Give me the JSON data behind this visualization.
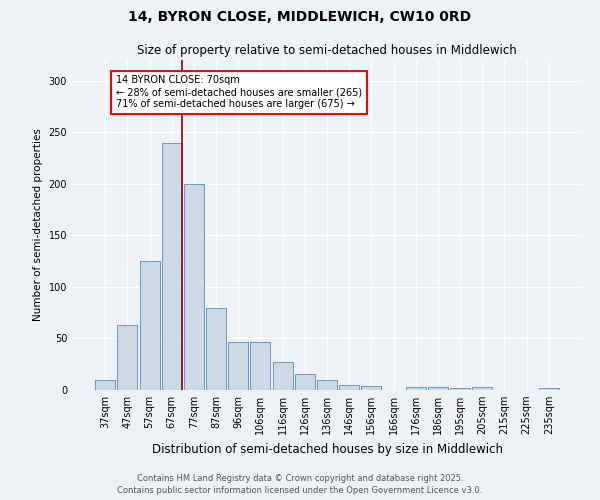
{
  "title1": "14, BYRON CLOSE, MIDDLEWICH, CW10 0RD",
  "title2": "Size of property relative to semi-detached houses in Middlewich",
  "xlabel": "Distribution of semi-detached houses by size in Middlewich",
  "ylabel": "Number of semi-detached properties",
  "categories": [
    "37sqm",
    "47sqm",
    "57sqm",
    "67sqm",
    "77sqm",
    "87sqm",
    "96sqm",
    "106sqm",
    "116sqm",
    "126sqm",
    "136sqm",
    "146sqm",
    "156sqm",
    "166sqm",
    "176sqm",
    "186sqm",
    "195sqm",
    "205sqm",
    "215sqm",
    "225sqm",
    "235sqm"
  ],
  "values": [
    10,
    63,
    125,
    240,
    200,
    80,
    47,
    47,
    27,
    16,
    10,
    5,
    4,
    0,
    3,
    3,
    2,
    3,
    0,
    0,
    2
  ],
  "bar_color": "#cdd9e5",
  "bar_edge_color": "#6699cc",
  "annotation_text": "14 BYRON CLOSE: 70sqm\n← 28% of semi-detached houses are smaller (265)\n71% of semi-detached houses are larger (675) →",
  "vline_color": "#990000",
  "ylim": [
    0,
    320
  ],
  "yticks": [
    0,
    50,
    100,
    150,
    200,
    250,
    300
  ],
  "footer1": "Contains HM Land Registry data © Crown copyright and database right 2025.",
  "footer2": "Contains public sector information licensed under the Open Government Licence v3.0.",
  "bg_color": "#eef2f7",
  "title1_fontsize": 10,
  "title2_fontsize": 8.5,
  "xlabel_fontsize": 8.5,
  "ylabel_fontsize": 7.5,
  "tick_fontsize": 7,
  "annotation_fontsize": 7,
  "footer_fontsize": 6
}
